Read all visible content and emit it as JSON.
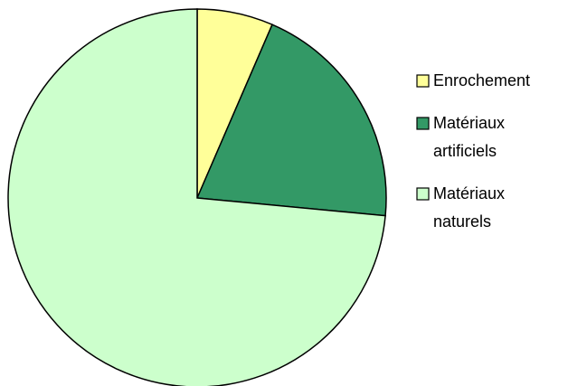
{
  "chart_data": {
    "type": "pie",
    "categories": [
      "Enrochement",
      "Matériaux artificiels",
      "Matériaux naturels"
    ],
    "values": [
      6.5,
      20,
      73.5
    ],
    "colors": [
      "#ffff99",
      "#339966",
      "#ccffcc"
    ],
    "legend": "right"
  }
}
